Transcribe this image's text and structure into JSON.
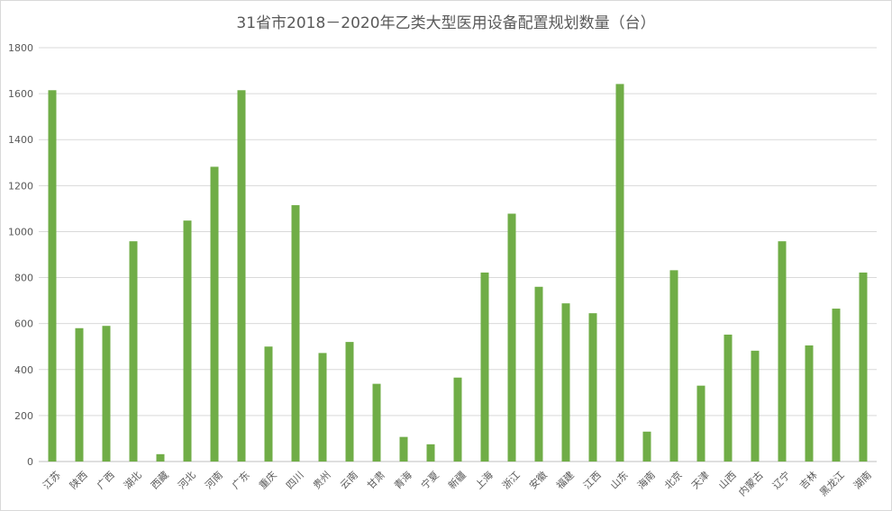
{
  "chart_data": {
    "type": "bar",
    "title": "31省市2018－2020年乙类大型医用设备配置规划数量（台）",
    "xlabel": "",
    "ylabel": "",
    "ylim": [
      0,
      1800
    ],
    "yticks": [
      0,
      200,
      400,
      600,
      800,
      1000,
      1200,
      1400,
      1600,
      1800
    ],
    "grid": true,
    "legend": "none",
    "bar_color": "#70AD47",
    "categories": [
      "江苏",
      "陕西",
      "广西",
      "湖北",
      "西藏",
      "河北",
      "河南",
      "广东",
      "重庆",
      "四川",
      "贵州",
      "云南",
      "甘肃",
      "青海",
      "宁夏",
      "新疆",
      "上海",
      "浙江",
      "安徽",
      "福建",
      "江西",
      "山东",
      "海南",
      "北京",
      "天津",
      "山西",
      "内蒙古",
      "辽宁",
      "吉林",
      "黑龙江",
      "湖南"
    ],
    "values": [
      1615,
      580,
      590,
      958,
      32,
      1048,
      1282,
      1615,
      500,
      1115,
      472,
      520,
      338,
      107,
      75,
      365,
      822,
      1078,
      760,
      688,
      645,
      1642,
      130,
      832,
      330,
      552,
      482,
      958,
      505,
      665,
      822
    ]
  }
}
